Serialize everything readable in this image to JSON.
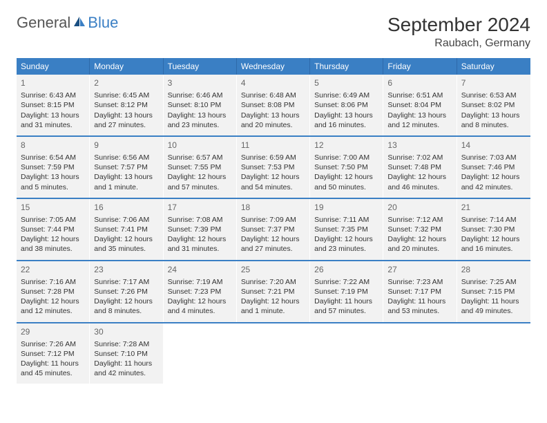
{
  "logo": {
    "a": "General",
    "b": "Blue"
  },
  "title": "September 2024",
  "subtitle": "Raubach, Germany",
  "weekdays": [
    "Sunday",
    "Monday",
    "Tuesday",
    "Wednesday",
    "Thursday",
    "Friday",
    "Saturday"
  ],
  "colors": {
    "accent": "#3a7fc4",
    "cellBg": "#f2f2f2",
    "text": "#333333",
    "muted": "#666666"
  },
  "days": [
    {
      "n": "1",
      "sr": "6:43 AM",
      "ss": "8:15 PM",
      "dl": "13 hours and 31 minutes."
    },
    {
      "n": "2",
      "sr": "6:45 AM",
      "ss": "8:12 PM",
      "dl": "13 hours and 27 minutes."
    },
    {
      "n": "3",
      "sr": "6:46 AM",
      "ss": "8:10 PM",
      "dl": "13 hours and 23 minutes."
    },
    {
      "n": "4",
      "sr": "6:48 AM",
      "ss": "8:08 PM",
      "dl": "13 hours and 20 minutes."
    },
    {
      "n": "5",
      "sr": "6:49 AM",
      "ss": "8:06 PM",
      "dl": "13 hours and 16 minutes."
    },
    {
      "n": "6",
      "sr": "6:51 AM",
      "ss": "8:04 PM",
      "dl": "13 hours and 12 minutes."
    },
    {
      "n": "7",
      "sr": "6:53 AM",
      "ss": "8:02 PM",
      "dl": "13 hours and 8 minutes."
    },
    {
      "n": "8",
      "sr": "6:54 AM",
      "ss": "7:59 PM",
      "dl": "13 hours and 5 minutes."
    },
    {
      "n": "9",
      "sr": "6:56 AM",
      "ss": "7:57 PM",
      "dl": "13 hours and 1 minute."
    },
    {
      "n": "10",
      "sr": "6:57 AM",
      "ss": "7:55 PM",
      "dl": "12 hours and 57 minutes."
    },
    {
      "n": "11",
      "sr": "6:59 AM",
      "ss": "7:53 PM",
      "dl": "12 hours and 54 minutes."
    },
    {
      "n": "12",
      "sr": "7:00 AM",
      "ss": "7:50 PM",
      "dl": "12 hours and 50 minutes."
    },
    {
      "n": "13",
      "sr": "7:02 AM",
      "ss": "7:48 PM",
      "dl": "12 hours and 46 minutes."
    },
    {
      "n": "14",
      "sr": "7:03 AM",
      "ss": "7:46 PM",
      "dl": "12 hours and 42 minutes."
    },
    {
      "n": "15",
      "sr": "7:05 AM",
      "ss": "7:44 PM",
      "dl": "12 hours and 38 minutes."
    },
    {
      "n": "16",
      "sr": "7:06 AM",
      "ss": "7:41 PM",
      "dl": "12 hours and 35 minutes."
    },
    {
      "n": "17",
      "sr": "7:08 AM",
      "ss": "7:39 PM",
      "dl": "12 hours and 31 minutes."
    },
    {
      "n": "18",
      "sr": "7:09 AM",
      "ss": "7:37 PM",
      "dl": "12 hours and 27 minutes."
    },
    {
      "n": "19",
      "sr": "7:11 AM",
      "ss": "7:35 PM",
      "dl": "12 hours and 23 minutes."
    },
    {
      "n": "20",
      "sr": "7:12 AM",
      "ss": "7:32 PM",
      "dl": "12 hours and 20 minutes."
    },
    {
      "n": "21",
      "sr": "7:14 AM",
      "ss": "7:30 PM",
      "dl": "12 hours and 16 minutes."
    },
    {
      "n": "22",
      "sr": "7:16 AM",
      "ss": "7:28 PM",
      "dl": "12 hours and 12 minutes."
    },
    {
      "n": "23",
      "sr": "7:17 AM",
      "ss": "7:26 PM",
      "dl": "12 hours and 8 minutes."
    },
    {
      "n": "24",
      "sr": "7:19 AM",
      "ss": "7:23 PM",
      "dl": "12 hours and 4 minutes."
    },
    {
      "n": "25",
      "sr": "7:20 AM",
      "ss": "7:21 PM",
      "dl": "12 hours and 1 minute."
    },
    {
      "n": "26",
      "sr": "7:22 AM",
      "ss": "7:19 PM",
      "dl": "11 hours and 57 minutes."
    },
    {
      "n": "27",
      "sr": "7:23 AM",
      "ss": "7:17 PM",
      "dl": "11 hours and 53 minutes."
    },
    {
      "n": "28",
      "sr": "7:25 AM",
      "ss": "7:15 PM",
      "dl": "11 hours and 49 minutes."
    },
    {
      "n": "29",
      "sr": "7:26 AM",
      "ss": "7:12 PM",
      "dl": "11 hours and 45 minutes."
    },
    {
      "n": "30",
      "sr": "7:28 AM",
      "ss": "7:10 PM",
      "dl": "11 hours and 42 minutes."
    }
  ],
  "labels": {
    "sunrise": "Sunrise: ",
    "sunset": "Sunset: ",
    "daylight": "Daylight: "
  }
}
